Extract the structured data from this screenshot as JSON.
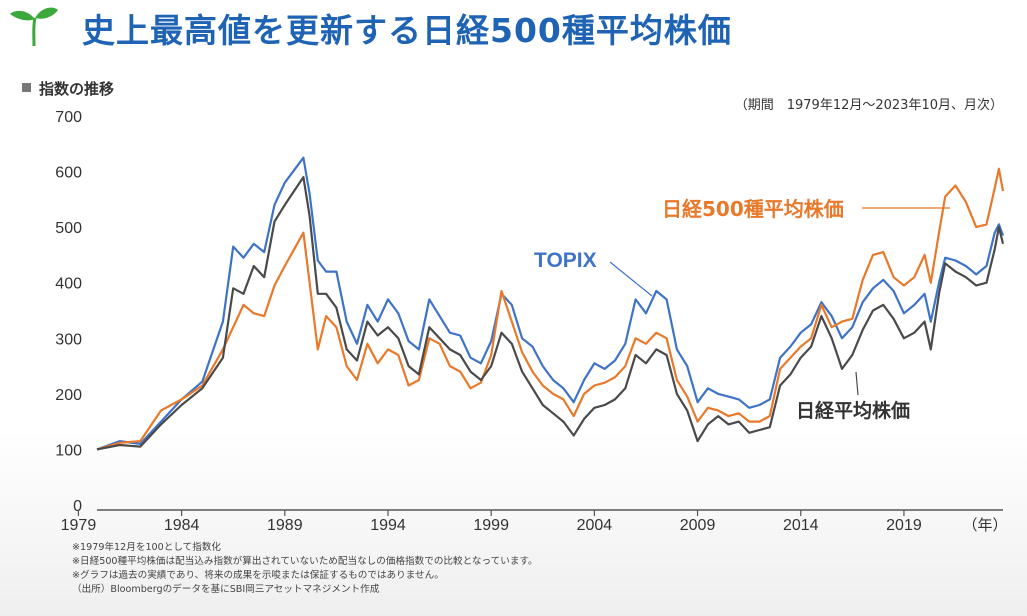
{
  "header": {
    "title": "史上最高値を更新する日経500種平均株価"
  },
  "subtitle": "指数の推移",
  "period": "（期間　1979年12月～2023年10月、月次）",
  "notes": [
    "※1979年12月を100として指数化",
    "※日経500種平均株価は配当込み指数が算出されていないため配当なしの価格指数での比較となっています。",
    "※グラフは過去の実績であり、将来の成果を示唆または保証するものではありません。",
    "（出所）Bloombergのデータを基にSBI岡三アセットマネジメント作成"
  ],
  "colors": {
    "title": "#1f63b4",
    "nikkei500": "#e8792b",
    "topix": "#3f73c8",
    "nikkei225": "#4a4a4a"
  },
  "chart_data": {
    "type": "line",
    "title": "指数の推移",
    "xlabel": "（年）",
    "ylabel": "",
    "xlim": [
      1979.9,
      2023.8
    ],
    "ylim": [
      0,
      700
    ],
    "x_ticks": [
      "1979",
      "1984",
      "1989",
      "1994",
      "1999",
      "2004",
      "2009",
      "2014",
      "2019"
    ],
    "y_ticks": [
      "0",
      "100",
      "200",
      "300",
      "400",
      "500",
      "600",
      "700"
    ],
    "x_unit_label": "（年）",
    "series": [
      {
        "name": "TOPIX",
        "label": "TOPIX",
        "color": "#3f73c8",
        "points": [
          [
            1979.9,
            100
          ],
          [
            1981,
            115
          ],
          [
            1982,
            110
          ],
          [
            1983,
            150
          ],
          [
            1984,
            190
          ],
          [
            1985,
            222
          ],
          [
            1986,
            330
          ],
          [
            1986.5,
            465
          ],
          [
            1987,
            445
          ],
          [
            1987.5,
            470
          ],
          [
            1988,
            455
          ],
          [
            1988.5,
            540
          ],
          [
            1989,
            580
          ],
          [
            1989.9,
            625
          ],
          [
            1990.2,
            560
          ],
          [
            1990.6,
            440
          ],
          [
            1991,
            420
          ],
          [
            1991.5,
            420
          ],
          [
            1992,
            330
          ],
          [
            1992.5,
            290
          ],
          [
            1993,
            360
          ],
          [
            1993.5,
            330
          ],
          [
            1994,
            370
          ],
          [
            1994.5,
            345
          ],
          [
            1995,
            295
          ],
          [
            1995.5,
            280
          ],
          [
            1996,
            370
          ],
          [
            1996.5,
            340
          ],
          [
            1997,
            310
          ],
          [
            1997.5,
            305
          ],
          [
            1998,
            265
          ],
          [
            1998.5,
            255
          ],
          [
            1999,
            295
          ],
          [
            1999.5,
            380
          ],
          [
            2000,
            360
          ],
          [
            2000.5,
            300
          ],
          [
            2001,
            285
          ],
          [
            2001.5,
            250
          ],
          [
            2002,
            225
          ],
          [
            2002.5,
            210
          ],
          [
            2003,
            185
          ],
          [
            2003.5,
            225
          ],
          [
            2004,
            255
          ],
          [
            2004.5,
            245
          ],
          [
            2005,
            260
          ],
          [
            2005.5,
            290
          ],
          [
            2006,
            370
          ],
          [
            2006.5,
            345
          ],
          [
            2007,
            385
          ],
          [
            2007.5,
            370
          ],
          [
            2008,
            280
          ],
          [
            2008.5,
            250
          ],
          [
            2009,
            185
          ],
          [
            2009.5,
            210
          ],
          [
            2010,
            200
          ],
          [
            2010.5,
            195
          ],
          [
            2011,
            190
          ],
          [
            2011.5,
            175
          ],
          [
            2012,
            180
          ],
          [
            2012.5,
            190
          ],
          [
            2013,
            265
          ],
          [
            2013.5,
            285
          ],
          [
            2014,
            310
          ],
          [
            2014.5,
            325
          ],
          [
            2015,
            365
          ],
          [
            2015.5,
            340
          ],
          [
            2016,
            300
          ],
          [
            2016.5,
            320
          ],
          [
            2017,
            365
          ],
          [
            2017.5,
            390
          ],
          [
            2018,
            405
          ],
          [
            2018.5,
            385
          ],
          [
            2019,
            345
          ],
          [
            2019.5,
            360
          ],
          [
            2020,
            380
          ],
          [
            2020.3,
            330
          ],
          [
            2020.7,
            400
          ],
          [
            2021,
            445
          ],
          [
            2021.5,
            440
          ],
          [
            2022,
            430
          ],
          [
            2022.5,
            415
          ],
          [
            2023,
            430
          ],
          [
            2023.4,
            490
          ],
          [
            2023.6,
            505
          ],
          [
            2023.8,
            485
          ]
        ]
      },
      {
        "name": "日経500種平均株価",
        "label": "日経500種平均株価",
        "color": "#e8792b",
        "points": [
          [
            1979.9,
            100
          ],
          [
            1981,
            112
          ],
          [
            1982,
            115
          ],
          [
            1983,
            170
          ],
          [
            1984,
            190
          ],
          [
            1985,
            215
          ],
          [
            1986,
            280
          ],
          [
            1986.5,
            320
          ],
          [
            1987,
            360
          ],
          [
            1987.5,
            345
          ],
          [
            1988,
            340
          ],
          [
            1988.5,
            395
          ],
          [
            1989,
            430
          ],
          [
            1989.9,
            490
          ],
          [
            1990.2,
            400
          ],
          [
            1990.6,
            280
          ],
          [
            1991,
            340
          ],
          [
            1991.5,
            320
          ],
          [
            1992,
            250
          ],
          [
            1992.5,
            225
          ],
          [
            1993,
            290
          ],
          [
            1993.5,
            255
          ],
          [
            1994,
            280
          ],
          [
            1994.5,
            270
          ],
          [
            1995,
            215
          ],
          [
            1995.5,
            225
          ],
          [
            1996,
            300
          ],
          [
            1996.5,
            290
          ],
          [
            1997,
            250
          ],
          [
            1997.5,
            240
          ],
          [
            1998,
            210
          ],
          [
            1998.5,
            220
          ],
          [
            1999,
            270
          ],
          [
            1999.5,
            385
          ],
          [
            2000,
            330
          ],
          [
            2000.5,
            275
          ],
          [
            2001,
            240
          ],
          [
            2001.5,
            215
          ],
          [
            2002,
            200
          ],
          [
            2002.5,
            190
          ],
          [
            2003,
            160
          ],
          [
            2003.5,
            200
          ],
          [
            2004,
            215
          ],
          [
            2004.5,
            220
          ],
          [
            2005,
            230
          ],
          [
            2005.5,
            250
          ],
          [
            2006,
            300
          ],
          [
            2006.5,
            290
          ],
          [
            2007,
            310
          ],
          [
            2007.5,
            300
          ],
          [
            2008,
            225
          ],
          [
            2008.5,
            195
          ],
          [
            2009,
            150
          ],
          [
            2009.5,
            175
          ],
          [
            2010,
            170
          ],
          [
            2010.5,
            160
          ],
          [
            2011,
            165
          ],
          [
            2011.5,
            150
          ],
          [
            2012,
            150
          ],
          [
            2012.5,
            160
          ],
          [
            2013,
            245
          ],
          [
            2013.5,
            265
          ],
          [
            2014,
            285
          ],
          [
            2014.5,
            300
          ],
          [
            2015,
            360
          ],
          [
            2015.5,
            320
          ],
          [
            2016,
            330
          ],
          [
            2016.5,
            335
          ],
          [
            2017,
            405
          ],
          [
            2017.5,
            450
          ],
          [
            2018,
            455
          ],
          [
            2018.5,
            410
          ],
          [
            2019,
            395
          ],
          [
            2019.5,
            410
          ],
          [
            2020,
            450
          ],
          [
            2020.3,
            400
          ],
          [
            2020.7,
            490
          ],
          [
            2021,
            555
          ],
          [
            2021.5,
            575
          ],
          [
            2022,
            545
          ],
          [
            2022.5,
            500
          ],
          [
            2023,
            505
          ],
          [
            2023.4,
            570
          ],
          [
            2023.6,
            605
          ],
          [
            2023.8,
            565
          ]
        ]
      },
      {
        "name": "日経平均株価",
        "label": "日経平均株価",
        "color": "#4a4a4a",
        "points": [
          [
            1979.9,
            100
          ],
          [
            1981,
            108
          ],
          [
            1982,
            105
          ],
          [
            1983,
            145
          ],
          [
            1984,
            180
          ],
          [
            1985,
            210
          ],
          [
            1986,
            265
          ],
          [
            1986.5,
            390
          ],
          [
            1987,
            380
          ],
          [
            1987.5,
            430
          ],
          [
            1988,
            410
          ],
          [
            1988.5,
            510
          ],
          [
            1989,
            540
          ],
          [
            1989.9,
            590
          ],
          [
            1990.2,
            520
          ],
          [
            1990.6,
            380
          ],
          [
            1991,
            380
          ],
          [
            1991.5,
            355
          ],
          [
            1992,
            280
          ],
          [
            1992.5,
            260
          ],
          [
            1993,
            330
          ],
          [
            1993.5,
            305
          ],
          [
            1994,
            320
          ],
          [
            1994.5,
            300
          ],
          [
            1995,
            250
          ],
          [
            1995.5,
            235
          ],
          [
            1996,
            320
          ],
          [
            1996.5,
            300
          ],
          [
            1997,
            280
          ],
          [
            1997.5,
            270
          ],
          [
            1998,
            240
          ],
          [
            1998.5,
            225
          ],
          [
            1999,
            250
          ],
          [
            1999.5,
            310
          ],
          [
            2000,
            290
          ],
          [
            2000.5,
            240
          ],
          [
            2001,
            210
          ],
          [
            2001.5,
            180
          ],
          [
            2002,
            165
          ],
          [
            2002.5,
            150
          ],
          [
            2003,
            125
          ],
          [
            2003.5,
            155
          ],
          [
            2004,
            175
          ],
          [
            2004.5,
            180
          ],
          [
            2005,
            190
          ],
          [
            2005.5,
            210
          ],
          [
            2006,
            270
          ],
          [
            2006.5,
            255
          ],
          [
            2007,
            280
          ],
          [
            2007.5,
            270
          ],
          [
            2008,
            200
          ],
          [
            2008.5,
            170
          ],
          [
            2009,
            115
          ],
          [
            2009.5,
            145
          ],
          [
            2010,
            160
          ],
          [
            2010.5,
            145
          ],
          [
            2011,
            150
          ],
          [
            2011.5,
            130
          ],
          [
            2012,
            135
          ],
          [
            2012.5,
            140
          ],
          [
            2013,
            215
          ],
          [
            2013.5,
            235
          ],
          [
            2014,
            265
          ],
          [
            2014.5,
            285
          ],
          [
            2015,
            340
          ],
          [
            2015.5,
            300
          ],
          [
            2016,
            245
          ],
          [
            2016.5,
            270
          ],
          [
            2017,
            315
          ],
          [
            2017.5,
            350
          ],
          [
            2018,
            360
          ],
          [
            2018.5,
            335
          ],
          [
            2019,
            300
          ],
          [
            2019.5,
            310
          ],
          [
            2020,
            330
          ],
          [
            2020.3,
            280
          ],
          [
            2020.7,
            380
          ],
          [
            2021,
            435
          ],
          [
            2021.5,
            420
          ],
          [
            2022,
            410
          ],
          [
            2022.5,
            395
          ],
          [
            2023,
            400
          ],
          [
            2023.4,
            460
          ],
          [
            2023.6,
            500
          ],
          [
            2023.8,
            470
          ]
        ]
      }
    ]
  }
}
